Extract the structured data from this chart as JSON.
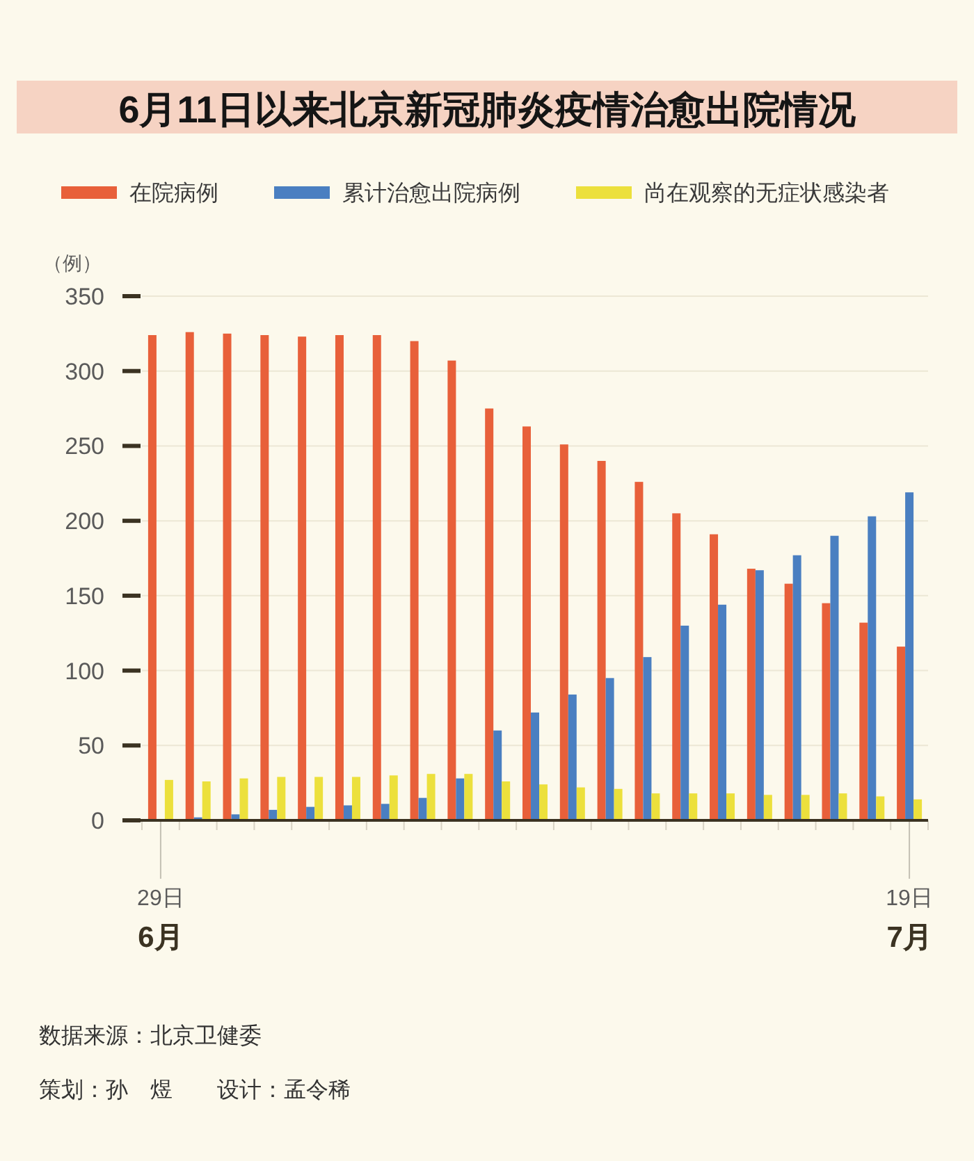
{
  "chart_data": {
    "type": "bar",
    "title": "6月11日以来北京新冠肺炎疫情治愈出院情况",
    "ylabel": "（例）",
    "categories": [
      "29日\n6月",
      null,
      null,
      null,
      null,
      null,
      null,
      null,
      null,
      null,
      null,
      null,
      null,
      null,
      null,
      null,
      null,
      null,
      null,
      null,
      "19日\n7月"
    ],
    "series": [
      {
        "name": "在院病例",
        "color": "#e8603a",
        "values": [
          324,
          326,
          325,
          324,
          323,
          324,
          324,
          320,
          307,
          275,
          263,
          251,
          240,
          226,
          205,
          191,
          168,
          158,
          145,
          132,
          116
        ]
      },
      {
        "name": "累计治愈出院病例",
        "color": "#4a7fc1",
        "values": [
          0,
          2,
          4,
          7,
          9,
          10,
          11,
          15,
          28,
          60,
          72,
          84,
          95,
          109,
          130,
          144,
          167,
          177,
          190,
          203,
          219
        ]
      },
      {
        "name": "尚在观察的无症状感染者",
        "color": "#ece03c",
        "values": [
          27,
          26,
          28,
          29,
          29,
          29,
          30,
          31,
          31,
          26,
          24,
          22,
          21,
          18,
          18,
          18,
          17,
          17,
          18,
          16,
          14
        ]
      }
    ],
    "ylim": [
      0,
      350
    ],
    "yticks": [
      0,
      50,
      100,
      150,
      200,
      250,
      300,
      350
    ],
    "grid": "y",
    "legend": "top",
    "annotations": [
      "数据来源：北京卫健委",
      "策划：孙　煜　　设计：孟令稀"
    ]
  }
}
